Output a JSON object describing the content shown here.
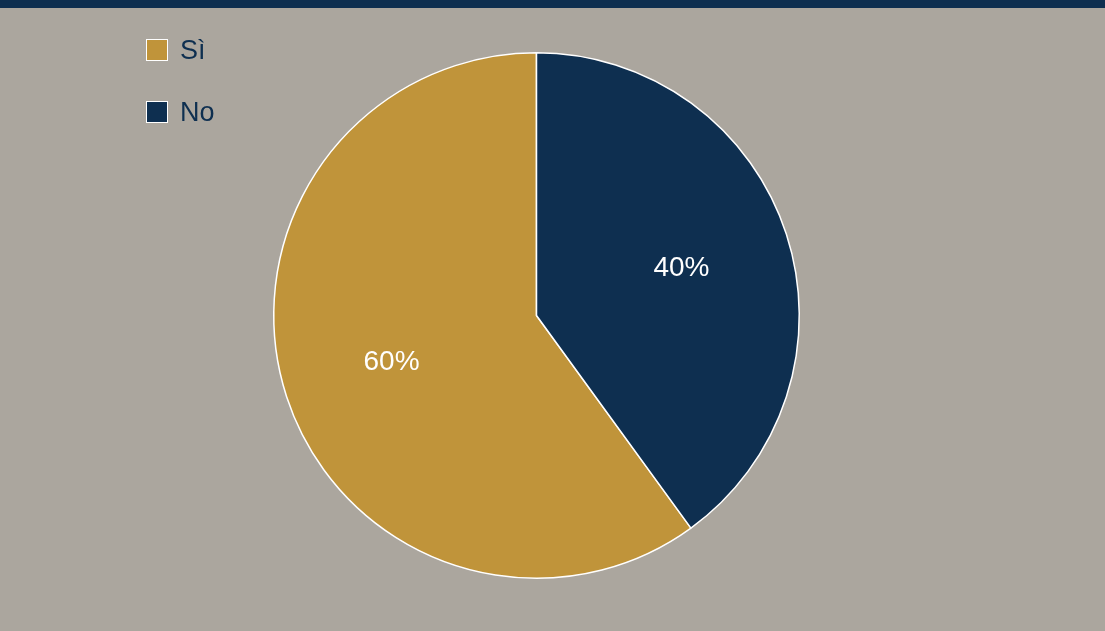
{
  "chart_data": {
    "type": "pie",
    "categories": [
      "Sì",
      "No"
    ],
    "values": [
      60,
      40
    ],
    "value_labels": [
      "60%",
      "40%"
    ],
    "colors": [
      "#c0943a",
      "#0e2f50"
    ],
    "data_labels": true,
    "legend": "top-left"
  }
}
